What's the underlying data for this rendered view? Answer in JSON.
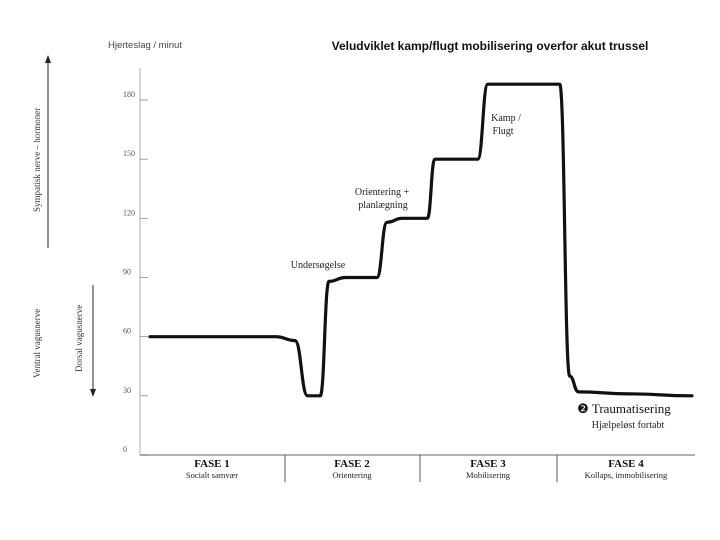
{
  "chart_data": {
    "type": "line",
    "title": "Veludviklet kamp/flugt mobilisering overfor akut trussel",
    "ylabel": "Hjerteslag / minut",
    "xlabel": "",
    "ylim": [
      0,
      200
    ],
    "yticks": [
      0,
      30,
      60,
      90,
      120,
      150,
      180
    ],
    "y_tick_labels": [
      "0",
      "30",
      "60",
      "90",
      "120",
      "150",
      "180"
    ],
    "grid": false,
    "series": [
      {
        "values": [
          60,
          60,
          60,
          58,
          30,
          30,
          88,
          90,
          90,
          118,
          120,
          120,
          150,
          150,
          150,
          188,
          188,
          188,
          40,
          32,
          31,
          30
        ]
      }
    ],
    "x": [
      0,
      6,
      10,
      11.5,
      12.5,
      13.5,
      14.2,
      15.5,
      18,
      18.8,
      20,
      22,
      22.6,
      24,
      26,
      26.8,
      30,
      32.5,
      33.3,
      34,
      38,
      43
    ]
  },
  "axis": {
    "y_label": "Hjerteslag / minut"
  },
  "phases": [
    {
      "title": "FASE 1",
      "subtitle": "Socialt samvær"
    },
    {
      "title": "FASE 2",
      "subtitle": "Orientering"
    },
    {
      "title": "FASE 3",
      "subtitle": "Mobilisering"
    },
    {
      "title": "FASE 4",
      "subtitle": "Kollaps, immobilisering"
    }
  ],
  "annotations": {
    "undersogelse": "Undersøgelse",
    "orientering_1": "Orientering +",
    "orientering_2": "planlægning",
    "kamp_1": "Kamp /",
    "kamp_2": "Flugt",
    "traumatisering": "❷ Traumatisering",
    "hjaelpelost": "Hjælpeløst fortabt"
  },
  "side_labels": {
    "sympatisk": "Sympatisk nerve – hormoner",
    "ventral": "Ventral vagusnerve",
    "dorsal": "Dorsal vagusnerve"
  }
}
